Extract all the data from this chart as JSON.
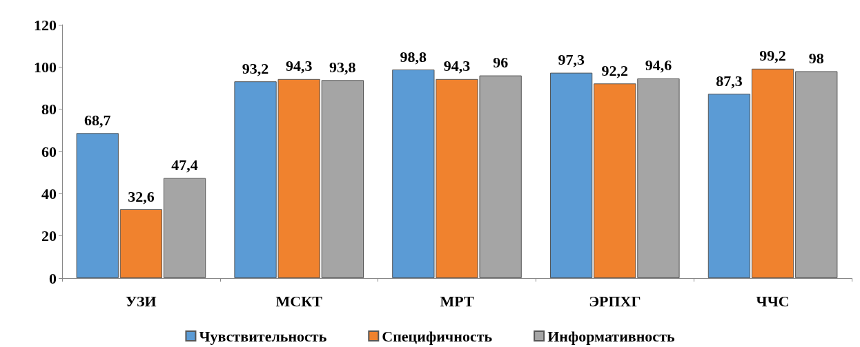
{
  "chart_data": {
    "type": "bar",
    "categories": [
      "УЗИ",
      "МСКТ",
      "МРТ",
      "ЭРПХГ",
      "ЧЧС"
    ],
    "series": [
      {
        "name": "Чувствительность",
        "color": "#5b9bd5",
        "values": [
          68.7,
          93.2,
          98.8,
          97.3,
          87.3
        ],
        "value_labels": [
          "68,7",
          "93,2",
          "98,8",
          "97,3",
          "87,3"
        ]
      },
      {
        "name": "Специфичность",
        "color": "#f0822e",
        "values": [
          32.6,
          94.3,
          94.3,
          92.2,
          99.2
        ],
        "value_labels": [
          "32,6",
          "94,3",
          "94,3",
          "92,2",
          "99,2"
        ]
      },
      {
        "name": "Информативность",
        "color": "#a5a5a5",
        "values": [
          47.4,
          93.8,
          96,
          94.6,
          98
        ],
        "value_labels": [
          "47,4",
          "93,8",
          "96",
          "94,6",
          "98"
        ]
      }
    ],
    "ylim": [
      0,
      120
    ],
    "yticks": [
      0,
      20,
      40,
      60,
      80,
      100,
      120
    ],
    "grid": false,
    "legend": "bottom"
  }
}
